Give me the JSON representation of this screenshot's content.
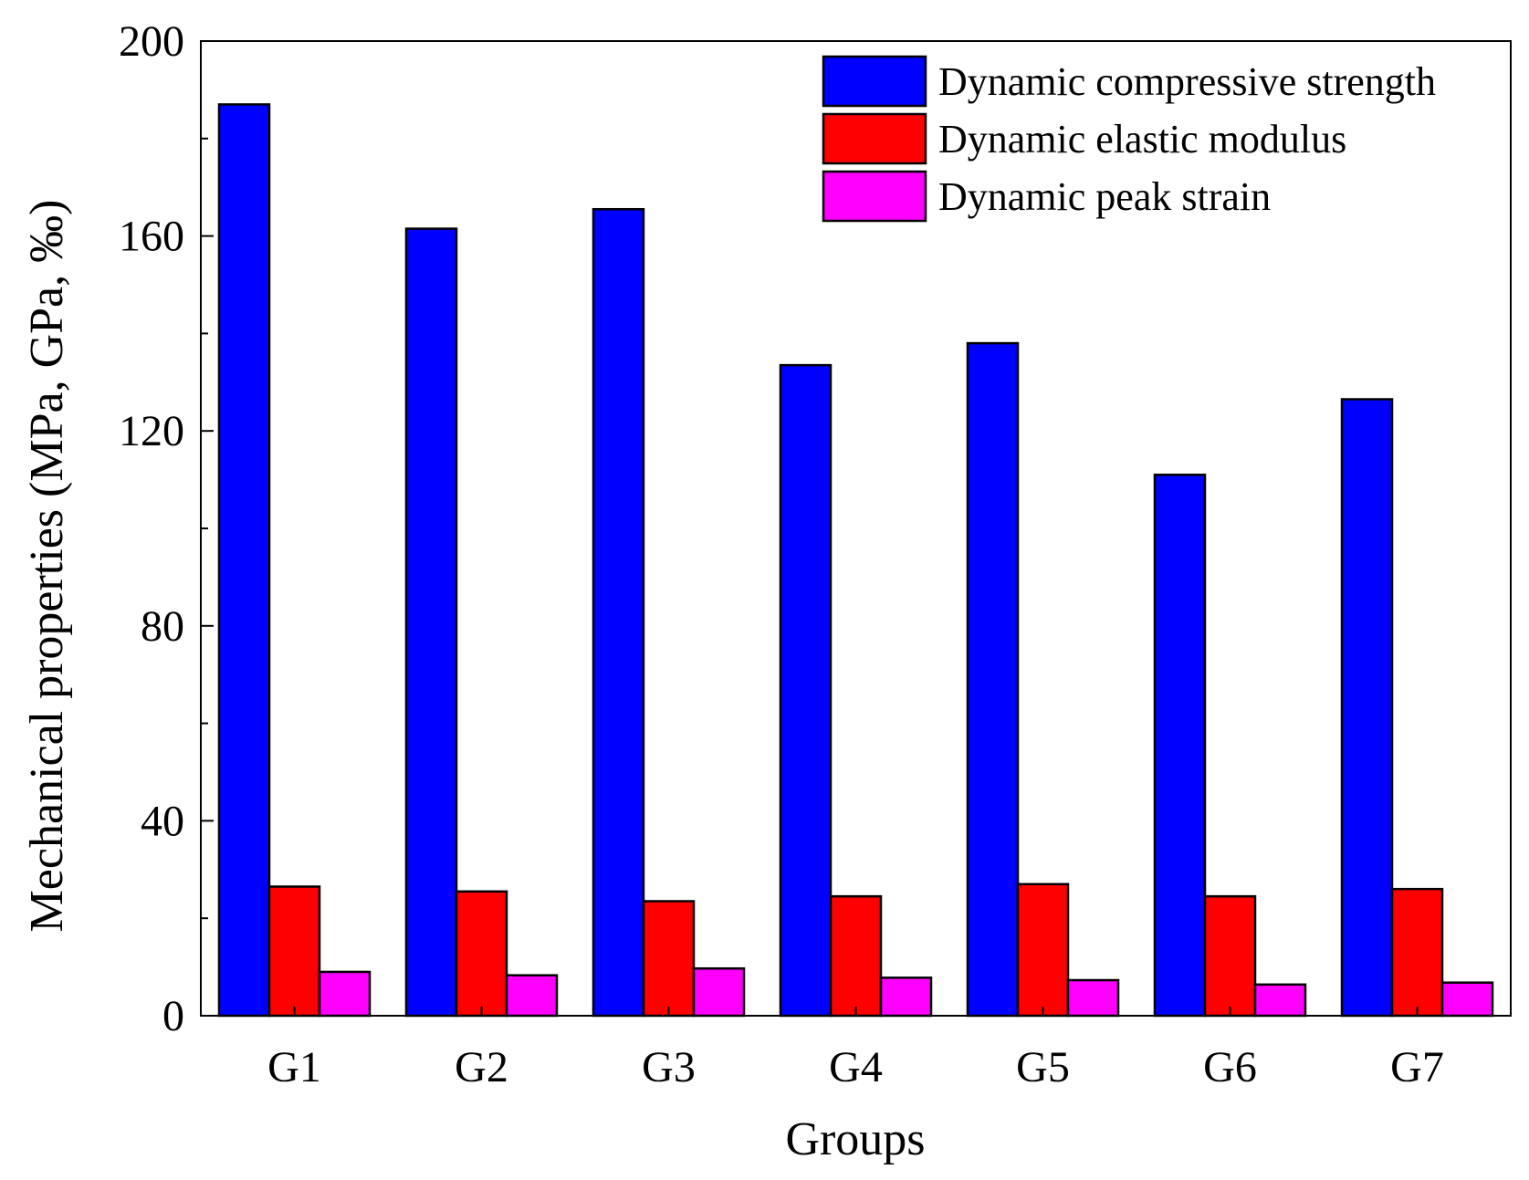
{
  "chart_data": {
    "type": "bar",
    "title": "",
    "xlabel": "Groups",
    "ylabel": "Mechanical properties (MPa, GPa, ‰)",
    "ylim": [
      0,
      200
    ],
    "yticks": [
      0,
      40,
      80,
      120,
      160,
      200
    ],
    "categories": [
      "G1",
      "G2",
      "G3",
      "G4",
      "G5",
      "G6",
      "G7"
    ],
    "series": [
      {
        "name": "Dynamic compressive strength",
        "color": "#0000ff",
        "values": [
          187,
          161.5,
          165.5,
          133.5,
          138,
          111,
          126.5
        ]
      },
      {
        "name": "Dynamic elastic modulus",
        "color": "#ff0000",
        "values": [
          26.5,
          25.5,
          23.5,
          24.5,
          27,
          24.5,
          26
        ]
      },
      {
        "name": "Dynamic peak strain",
        "color": "#ff00ff",
        "values": [
          9,
          8.3,
          9.7,
          7.8,
          7.3,
          6.4,
          6.8
        ]
      }
    ],
    "legend_position": "top-right",
    "grid": false
  }
}
